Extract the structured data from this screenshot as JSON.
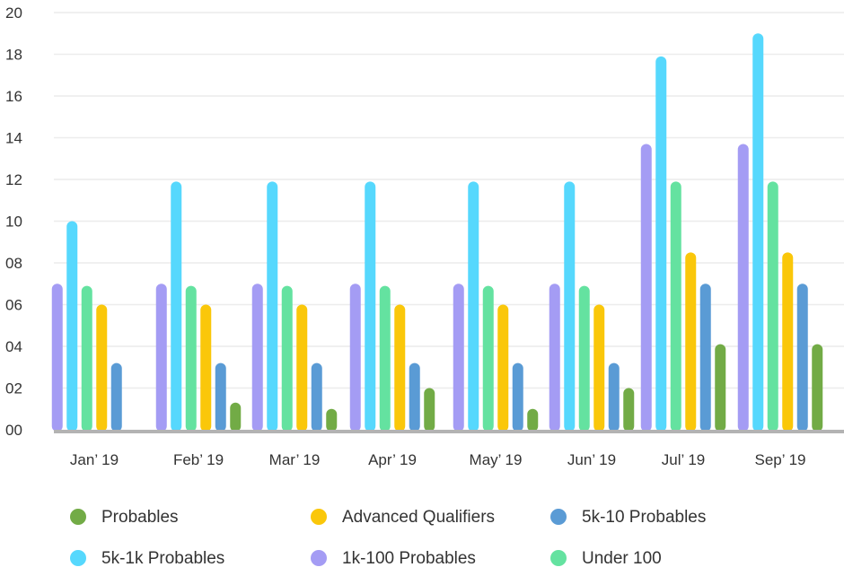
{
  "chart_data": {
    "type": "bar",
    "categories": [
      "Jan’ 19",
      "Feb’ 19",
      "Mar’ 19",
      "Apr’ 19",
      "May’ 19",
      "Jun’ 19",
      "Jul’ 19",
      "Sep’ 19"
    ],
    "y_tick_labels": [
      "00",
      "02",
      "04",
      "06",
      "08",
      "10",
      "12",
      "14",
      "16",
      "18",
      "20"
    ],
    "ylim": [
      0,
      20
    ],
    "grid": true,
    "legend_position": "bottom",
    "series": [
      {
        "name": "1k-100 Probables",
        "color": "#a49cf4",
        "values": [
          7,
          7,
          7,
          7,
          7,
          7,
          13.7,
          13.7
        ]
      },
      {
        "name": "5k-1k Probables",
        "color": "#56d8fd",
        "values": [
          10,
          11.9,
          11.9,
          11.9,
          11.9,
          11.9,
          17.9,
          19
        ]
      },
      {
        "name": "Under 100",
        "color": "#64e2a0",
        "values": [
          6.9,
          6.9,
          6.9,
          6.9,
          6.9,
          6.9,
          11.9,
          11.9
        ]
      },
      {
        "name": "Advanced Qualifiers",
        "color": "#fac70a",
        "values": [
          6,
          6,
          6,
          6,
          6,
          6,
          8.5,
          8.5
        ]
      },
      {
        "name": "5k-10 Probables",
        "color": "#5a9bd5",
        "values": [
          3.2,
          3.2,
          3.2,
          3.2,
          3.2,
          3.2,
          7,
          7
        ]
      },
      {
        "name": "Probables",
        "color": "#72ab46",
        "values": [
          0,
          1.3,
          1,
          2,
          1,
          2,
          4.1,
          4.1
        ]
      }
    ],
    "legend_order": [
      "Probables",
      "Advanced Qualifiers",
      "5k-10 Probables",
      "5k-1k Probables",
      "1k-100 Probables",
      "Under 100"
    ]
  }
}
